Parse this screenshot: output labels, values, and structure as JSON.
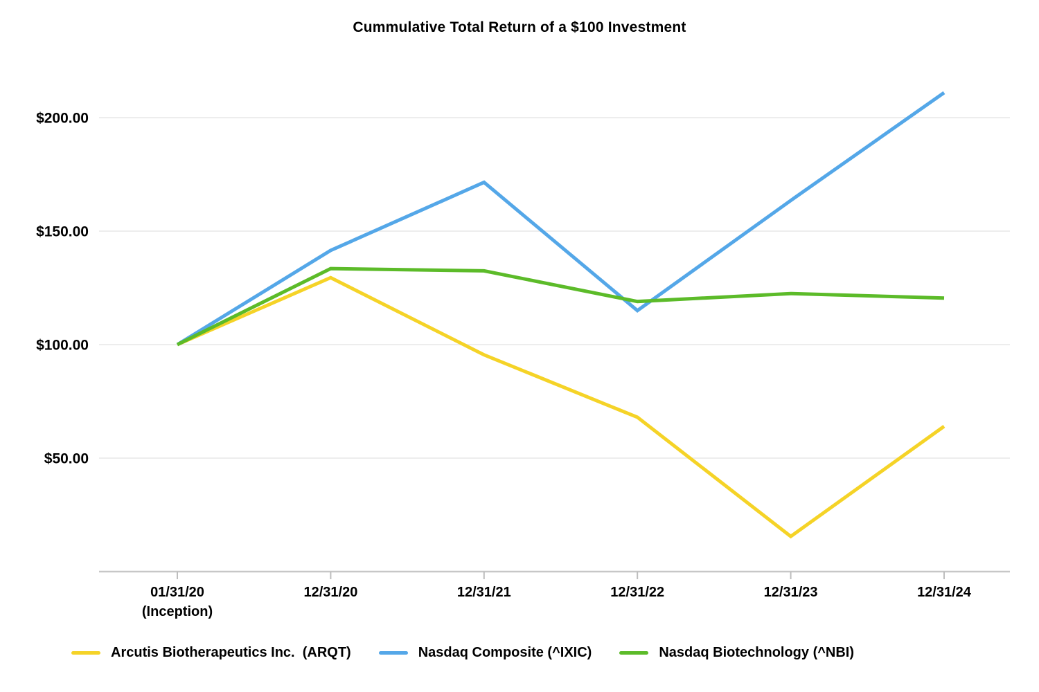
{
  "chart_data": {
    "type": "line",
    "title": "Cummulative Total Return of a $100 Investment",
    "categories": [
      "01/31/20\n(Inception)",
      "12/31/20",
      "12/31/21",
      "12/31/22",
      "12/31/23",
      "12/31/24"
    ],
    "series": [
      {
        "id": "arqt",
        "name": "Arcutis Biotherapeutics Inc.  (ARQT)",
        "color": "#F5D327",
        "values": [
          100.0,
          129.5,
          95.5,
          68.0,
          15.5,
          64.0
        ]
      },
      {
        "id": "ixic",
        "name": "Nasdaq Composite (^IXIC)",
        "color": "#54A7E8",
        "values": [
          100.0,
          141.5,
          171.5,
          115.0,
          163.5,
          211.0
        ]
      },
      {
        "id": "nbi",
        "name": "Nasdaq Biotechnology (^NBI)",
        "color": "#5CBB29",
        "values": [
          100.0,
          133.5,
          132.5,
          119.0,
          122.5,
          120.5
        ]
      }
    ],
    "y_axis": {
      "tick_labels": [
        "$50.00",
        "$100.00",
        "$150.00",
        "$200.00"
      ],
      "tick_values": [
        50,
        100,
        150,
        200
      ],
      "min": 0,
      "max": 215,
      "unit": "USD"
    },
    "x_axis": {
      "baseline_value": 0
    },
    "grid": "horizontal",
    "legend_position": "bottom",
    "colors": {
      "grid_line": "#ededed",
      "axis_line": "#c7c7c7",
      "text": "#000000",
      "background": "#ffffff"
    }
  }
}
